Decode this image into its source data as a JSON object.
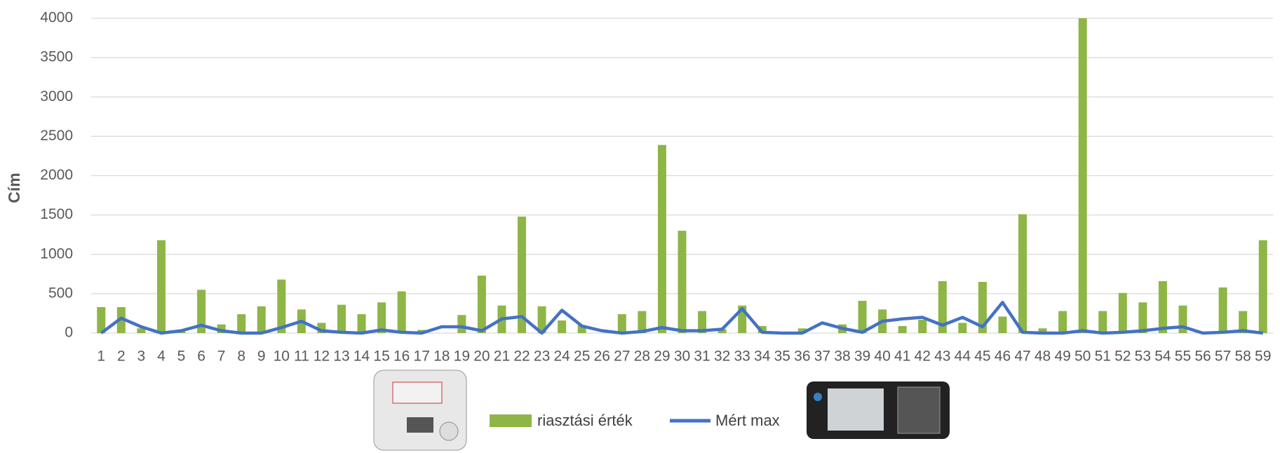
{
  "chart_data": {
    "type": "bar_line",
    "y_label": "Cím",
    "categories": [
      "1",
      "2",
      "3",
      "4",
      "5",
      "6",
      "7",
      "8",
      "9",
      "10",
      "11",
      "12",
      "13",
      "14",
      "15",
      "16",
      "17",
      "18",
      "19",
      "20",
      "21",
      "22",
      "23",
      "24",
      "25",
      "26",
      "27",
      "28",
      "29",
      "30",
      "31",
      "32",
      "33",
      "34",
      "35",
      "36",
      "37",
      "38",
      "39",
      "40",
      "41",
      "42",
      "43",
      "44",
      "45",
      "46",
      "47",
      "48",
      "49",
      "50",
      "51",
      "52",
      "53",
      "54",
      "55",
      "56",
      "57",
      "58",
      "59"
    ],
    "series": [
      {
        "name": "riasztási érték",
        "type": "bar",
        "color": "#8db646",
        "values": [
          330,
          330,
          60,
          1180,
          20,
          550,
          110,
          240,
          340,
          680,
          300,
          130,
          360,
          240,
          390,
          530,
          40,
          0,
          230,
          730,
          350,
          1480,
          340,
          160,
          100,
          0,
          240,
          280,
          2390,
          1300,
          280,
          50,
          350,
          90,
          0,
          60,
          0,
          110,
          410,
          300,
          90,
          170,
          660,
          130,
          650,
          210,
          1510,
          60,
          280,
          4000,
          280,
          510,
          390,
          660,
          350,
          0,
          580,
          280,
          1180
        ]
      },
      {
        "name": "Mért max",
        "type": "line",
        "color": "#4472c4",
        "values": [
          0,
          190,
          80,
          0,
          30,
          100,
          30,
          0,
          0,
          70,
          150,
          30,
          10,
          0,
          40,
          10,
          0,
          80,
          80,
          30,
          180,
          210,
          0,
          290,
          90,
          30,
          0,
          20,
          70,
          30,
          30,
          50,
          310,
          10,
          0,
          0,
          130,
          60,
          10,
          150,
          180,
          200,
          100,
          200,
          80,
          390,
          10,
          0,
          0,
          30,
          0,
          10,
          30,
          60,
          80,
          0,
          10,
          30,
          0
        ]
      }
    ],
    "ylim": [
      0,
      4000
    ],
    "yticks": [
      0,
      500,
      1000,
      1500,
      2000,
      2500,
      3000,
      3500,
      4000
    ],
    "grid": true
  }
}
